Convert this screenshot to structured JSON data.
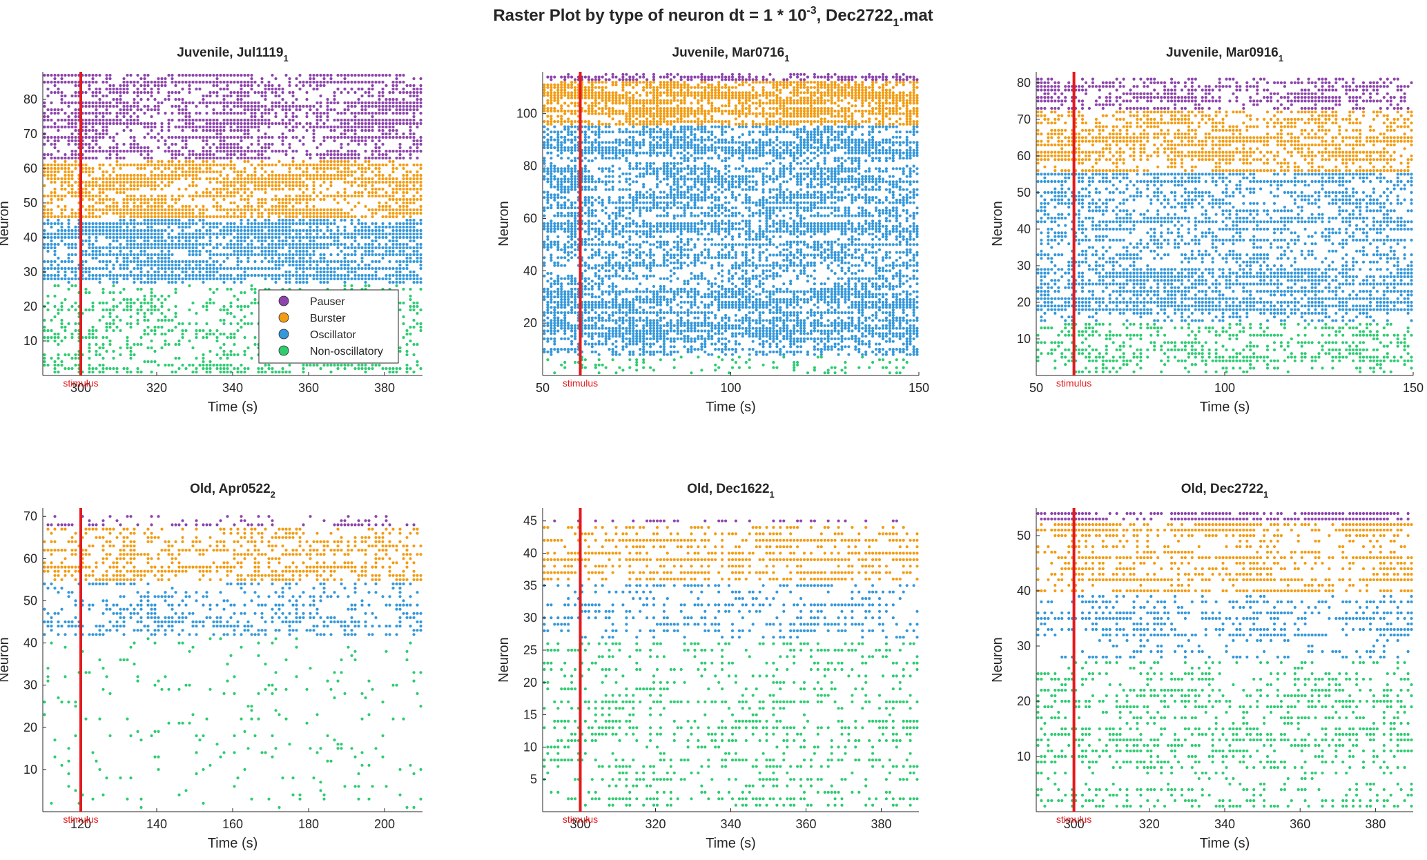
{
  "figure": {
    "title_main": "Raster Plot by type of neuron dt = 1 * 10",
    "title_exp": "-3",
    "title_tail_a": ", Dec2722",
    "title_tail_sub": "1",
    "title_tail_b": ".mat"
  },
  "legend": {
    "items": [
      {
        "label": "Pauser",
        "color": "#8e44ad"
      },
      {
        "label": "Burster",
        "color": "#f39c12"
      },
      {
        "label": "Oscillator",
        "color": "#3498db"
      },
      {
        "label": "Non-oscillatory",
        "color": "#2ecc71"
      }
    ],
    "placement": "inside lower-right of first panel"
  },
  "stimulus_color": "#e41a1c",
  "chart_data": [
    {
      "type": "scatter",
      "title": "Juvenile, Jul1119",
      "title_sub": "1",
      "xlabel": "Time (s)",
      "ylabel": "Neuron",
      "xlim": [
        290,
        390
      ],
      "ylim": [
        0,
        88
      ],
      "xticks": [
        300,
        320,
        340,
        360,
        380
      ],
      "yticks": [
        10,
        20,
        30,
        40,
        50,
        60,
        70,
        80
      ],
      "stimulus": {
        "x": 300,
        "label": "stimulus"
      },
      "groups": [
        {
          "name": "Pauser",
          "from": 63,
          "to": 87,
          "density": 0.55
        },
        {
          "name": "Burster",
          "from": 46,
          "to": 62,
          "density": 0.8
        },
        {
          "name": "Oscillator",
          "from": 27,
          "to": 45,
          "density": 0.75
        },
        {
          "name": "Non-oscillatory",
          "from": 1,
          "to": 26,
          "density": 0.3
        }
      ]
    },
    {
      "type": "scatter",
      "title": "Juvenile, Mar0716",
      "title_sub": "1",
      "xlabel": "Time (s)",
      "ylabel": "Neuron",
      "xlim": [
        50,
        150
      ],
      "ylim": [
        0,
        116
      ],
      "xticks": [
        50,
        100,
        150
      ],
      "yticks": [
        20,
        40,
        60,
        80,
        100
      ],
      "stimulus": {
        "x": 60,
        "label": "stimulus"
      },
      "groups": [
        {
          "name": "Pauser",
          "from": 113,
          "to": 115,
          "density": 0.5
        },
        {
          "name": "Burster",
          "from": 96,
          "to": 112,
          "density": 0.7
        },
        {
          "name": "Oscillator",
          "from": 8,
          "to": 95,
          "density": 0.55
        },
        {
          "name": "Non-oscillatory",
          "from": 1,
          "to": 7,
          "density": 0.15
        }
      ]
    },
    {
      "type": "scatter",
      "title": "Juvenile, Mar0916",
      "title_sub": "1",
      "xlabel": "Time (s)",
      "ylabel": "Neuron",
      "xlim": [
        50,
        150
      ],
      "ylim": [
        0,
        83
      ],
      "xticks": [
        50,
        100,
        150
      ],
      "yticks": [
        10,
        20,
        30,
        40,
        50,
        60,
        70,
        80
      ],
      "stimulus": {
        "x": 60,
        "label": "stimulus"
      },
      "groups": [
        {
          "name": "Pauser",
          "from": 73,
          "to": 81,
          "density": 0.45
        },
        {
          "name": "Burster",
          "from": 56,
          "to": 72,
          "density": 0.55
        },
        {
          "name": "Oscillator",
          "from": 15,
          "to": 55,
          "density": 0.6
        },
        {
          "name": "Non-oscillatory",
          "from": 1,
          "to": 14,
          "density": 0.35
        }
      ]
    },
    {
      "type": "scatter",
      "title": "Old, Apr0522",
      "title_sub": "2",
      "xlabel": "Time (s)",
      "ylabel": "Neuron",
      "xlim": [
        110,
        210
      ],
      "ylim": [
        0,
        72
      ],
      "xticks": [
        120,
        140,
        160,
        180,
        200
      ],
      "yticks": [
        10,
        20,
        30,
        40,
        50,
        60,
        70
      ],
      "stimulus": {
        "x": 120,
        "label": "stimulus"
      },
      "groups": [
        {
          "name": "Pauser",
          "from": 68,
          "to": 70,
          "density": 0.25
        },
        {
          "name": "Burster",
          "from": 55,
          "to": 67,
          "density": 0.45
        },
        {
          "name": "Oscillator",
          "from": 42,
          "to": 54,
          "density": 0.35
        },
        {
          "name": "Non-oscillatory",
          "from": 1,
          "to": 41,
          "density": 0.05
        }
      ]
    },
    {
      "type": "scatter",
      "title": "Old, Dec1622",
      "title_sub": "1",
      "xlabel": "Time (s)",
      "ylabel": "Neuron",
      "xlim": [
        290,
        390
      ],
      "ylim": [
        0,
        47
      ],
      "xticks": [
        300,
        320,
        340,
        360,
        380
      ],
      "yticks": [
        5,
        10,
        15,
        20,
        25,
        30,
        35,
        40,
        45
      ],
      "stimulus": {
        "x": 300,
        "label": "stimulus"
      },
      "groups": [
        {
          "name": "Pauser",
          "from": 45,
          "to": 45,
          "density": 0.5
        },
        {
          "name": "Burster",
          "from": 36,
          "to": 44,
          "density": 0.6
        },
        {
          "name": "Oscillator",
          "from": 27,
          "to": 35,
          "density": 0.35
        },
        {
          "name": "Non-oscillatory",
          "from": 1,
          "to": 26,
          "density": 0.3
        }
      ]
    },
    {
      "type": "scatter",
      "title": "Old, Dec2722",
      "title_sub": "1",
      "xlabel": "Time (s)",
      "ylabel": "Neuron",
      "xlim": [
        290,
        390
      ],
      "ylim": [
        0,
        55
      ],
      "xticks": [
        300,
        320,
        340,
        360,
        380
      ],
      "yticks": [
        10,
        20,
        30,
        40,
        50
      ],
      "stimulus": {
        "x": 300,
        "label": "stimulus"
      },
      "groups": [
        {
          "name": "Pauser",
          "from": 53,
          "to": 54,
          "density": 0.5
        },
        {
          "name": "Burster",
          "from": 40,
          "to": 52,
          "density": 0.5
        },
        {
          "name": "Oscillator",
          "from": 28,
          "to": 39,
          "density": 0.35
        },
        {
          "name": "Non-oscillatory",
          "from": 1,
          "to": 27,
          "density": 0.3
        }
      ]
    }
  ]
}
